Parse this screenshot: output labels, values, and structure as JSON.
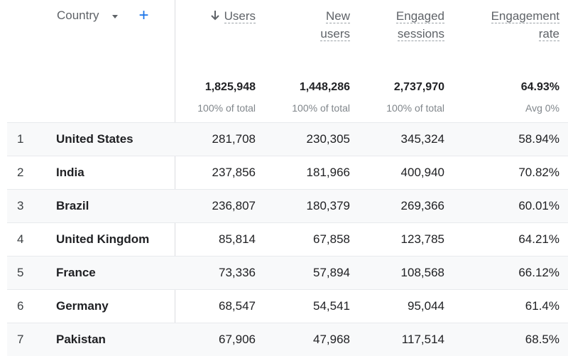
{
  "header": {
    "dimension_label": "Country",
    "columns": [
      {
        "line1": "Users",
        "line2": ""
      },
      {
        "line1": "New",
        "line2": "users"
      },
      {
        "line1": "Engaged",
        "line2": "sessions"
      },
      {
        "line1": "Engagement",
        "line2": "rate"
      }
    ],
    "add_icon": "plus-icon",
    "sort_icon": "arrow-down-icon",
    "dropdown_icon": "caret-down-icon"
  },
  "totals": [
    {
      "value": "1,825,948",
      "sub": "100% of total"
    },
    {
      "value": "1,448,286",
      "sub": "100% of total"
    },
    {
      "value": "2,737,970",
      "sub": "100% of total"
    },
    {
      "value": "64.93%",
      "sub": "Avg 0%"
    }
  ],
  "rows": [
    {
      "index": "1",
      "country": "United States",
      "users": "281,708",
      "new_users": "230,305",
      "engaged_sessions": "345,324",
      "engagement_rate": "58.94%"
    },
    {
      "index": "2",
      "country": "India",
      "users": "237,856",
      "new_users": "181,966",
      "engaged_sessions": "400,940",
      "engagement_rate": "70.82%"
    },
    {
      "index": "3",
      "country": "Brazil",
      "users": "236,807",
      "new_users": "180,379",
      "engaged_sessions": "269,366",
      "engagement_rate": "60.01%"
    },
    {
      "index": "4",
      "country": "United Kingdom",
      "users": "85,814",
      "new_users": "67,858",
      "engaged_sessions": "123,785",
      "engagement_rate": "64.21%"
    },
    {
      "index": "5",
      "country": "France",
      "users": "73,336",
      "new_users": "57,894",
      "engaged_sessions": "108,568",
      "engagement_rate": "66.12%"
    },
    {
      "index": "6",
      "country": "Germany",
      "users": "68,547",
      "new_users": "54,541",
      "engaged_sessions": "95,044",
      "engagement_rate": "61.4%"
    },
    {
      "index": "7",
      "country": "Pakistan",
      "users": "67,906",
      "new_users": "47,968",
      "engaged_sessions": "117,514",
      "engagement_rate": "68.5%"
    }
  ],
  "colors": {
    "accent": "#1a73e8",
    "row_alt": "#f8f9fa",
    "border": "#dadce0",
    "muted": "#5f6368"
  }
}
